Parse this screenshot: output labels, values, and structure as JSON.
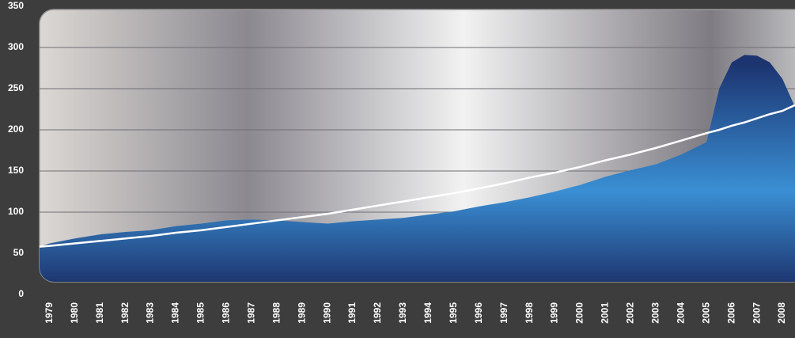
{
  "chart_data": {
    "type": "area",
    "x": [
      1978.6,
      1979,
      1980,
      1981,
      1982,
      1983,
      1984,
      1985,
      1986,
      1987,
      1988,
      1989,
      1990,
      1991,
      1992,
      1993,
      1994,
      1995,
      1996,
      1997,
      1998,
      1999,
      2000,
      2001,
      2002,
      2003,
      2004,
      2005,
      2005.5,
      2006,
      2006.5,
      2007,
      2007.5,
      2008,
      2008.5
    ],
    "series": [
      {
        "kind": "area",
        "color": "#3a8fd4",
        "values": [
          58,
          62,
          68,
          73,
          76,
          78,
          83,
          86,
          90,
          91,
          90,
          88,
          86,
          89,
          91,
          93,
          97,
          101,
          107,
          112,
          118,
          125,
          133,
          143,
          151,
          158,
          170,
          185,
          250,
          282,
          291,
          290,
          282,
          262,
          228
        ]
      },
      {
        "kind": "line",
        "color": "#ffffff",
        "values": [
          58,
          59,
          62,
          65,
          68,
          71,
          75,
          78,
          82,
          86,
          90,
          94,
          98,
          103,
          108,
          113,
          118,
          123,
          129,
          135,
          142,
          148,
          155,
          163,
          170,
          178,
          187,
          196,
          200,
          205,
          209,
          214,
          219,
          223,
          230
        ]
      }
    ],
    "xlim": [
      1978.6,
      2008.5
    ],
    "xticks": [
      1979,
      1980,
      1981,
      1982,
      1983,
      1984,
      1985,
      1986,
      1987,
      1988,
      1989,
      1990,
      1991,
      1992,
      1993,
      1994,
      1995,
      1996,
      1997,
      1998,
      1999,
      2000,
      2001,
      2002,
      2003,
      2004,
      2005,
      2006,
      2007,
      2008
    ],
    "ylim": [
      0,
      350
    ],
    "yticks": [
      0,
      50,
      100,
      150,
      200,
      250,
      300,
      350
    ],
    "grid": true
  }
}
